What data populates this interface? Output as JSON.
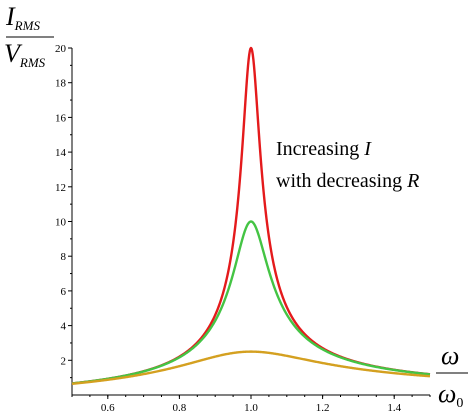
{
  "chart_data": {
    "type": "line",
    "xlim": [
      0.5,
      1.5
    ],
    "ylim": [
      0,
      20
    ],
    "x_ticks": [
      0.6,
      0.8,
      1.0,
      1.2,
      1.4
    ],
    "x_tick_labels": [
      "0.6",
      "0.8",
      "1.0",
      "1.2",
      "1.4"
    ],
    "y_ticks": [
      2,
      4,
      6,
      8,
      10,
      12,
      14,
      16,
      18,
      20
    ],
    "y_tick_labels": [
      "2",
      "4",
      "6",
      "8",
      "10",
      "12",
      "14",
      "16",
      "18",
      "20"
    ],
    "y_label": {
      "numerator": "I",
      "numerator_sub": "RMS",
      "denominator": "V",
      "denominator_sub": "RMS"
    },
    "x_label": {
      "numerator": "ω",
      "denominator": "ω",
      "denominator_sub": "0"
    },
    "annotation": {
      "line1_text": "Increasing ",
      "line1_var": "I",
      "line2_text": "with decreasing ",
      "line2_var": "R"
    },
    "grid": false,
    "series": [
      {
        "color": "#e41a1c",
        "peak": 20,
        "model": "1/sqrt(R^2 + (w - 1/w)^2)",
        "R": 0.05
      },
      {
        "color": "#44c444",
        "peak": 10,
        "model": "1/sqrt(R^2 + (w - 1/w)^2)",
        "R": 0.1
      },
      {
        "color": "#d4a020",
        "peak": 2.5,
        "model": "1/sqrt(R^2 + (w - 1/w)^2)",
        "R": 0.4
      }
    ]
  }
}
